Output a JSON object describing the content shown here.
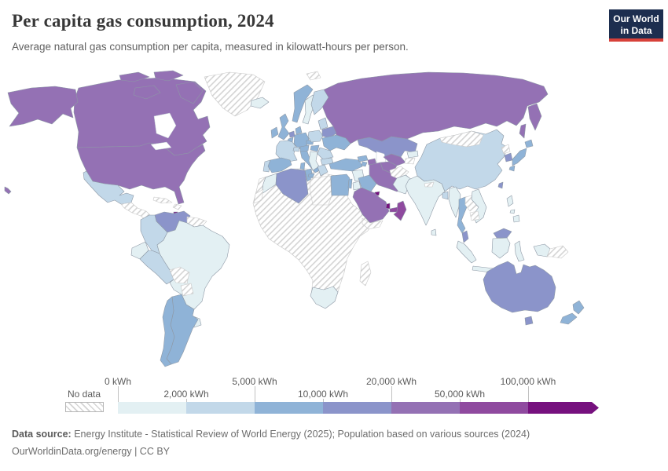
{
  "header": {
    "title": "Per capita gas consumption, 2024",
    "subtitle": "Average natural gas consumption per capita, measured in kilowatt-hours per person."
  },
  "logo": {
    "line1": "Our World",
    "line2": "in Data"
  },
  "colors": {
    "background": "#ffffff",
    "title_text": "#383838",
    "subtitle_text": "#616161",
    "legend_text": "#5b5b5b",
    "footer_text": "#6d6d6d",
    "logo_background": "#1d2e4f",
    "logo_accent_red": "#d7413a",
    "country_border": "#8e99a6",
    "no_data_hatch": "#d4d4d4"
  },
  "chart_data": {
    "type": "choropleth",
    "title": "Per capita gas consumption, 2024",
    "subtitle": "Average natural gas consumption per capita, measured in kilowatt-hours per person.",
    "unit": "kWh",
    "year": "2024",
    "legend": {
      "no_data_label": "No data",
      "tick_labels": [
        "0 kWh",
        "2,000 kWh",
        "5,000 kWh",
        "10,000 kWh",
        "20,000 kWh",
        "50,000 kWh",
        "100,000 kWh"
      ],
      "bins": [
        {
          "range": "0–2,000 kWh",
          "color": "#e3f0f3"
        },
        {
          "range": "2,000–5,000 kWh",
          "color": "#c2d8e9"
        },
        {
          "range": "5,000–10,000 kWh",
          "color": "#8fb3d7"
        },
        {
          "range": "10,000–20,000 kWh",
          "color": "#8b94ca"
        },
        {
          "range": "20,000–50,000 kWh",
          "color": "#9471b4"
        },
        {
          "range": "50,000–100,000 kWh",
          "color": "#8f4a9f"
        },
        {
          "range": "100,000+ kWh",
          "color": "#76117e"
        }
      ]
    },
    "regions": {
      "united-states": {
        "name": "United States",
        "bin": 4
      },
      "canada": {
        "name": "Canada",
        "bin": 4
      },
      "greenland": {
        "name": "Greenland",
        "bin": "no-data"
      },
      "mexico": {
        "name": "Mexico",
        "bin": 1
      },
      "central-america": {
        "name": "Central America",
        "bin": "no-data"
      },
      "cuba": {
        "name": "Cuba",
        "bin": "no-data"
      },
      "hispaniola": {
        "name": "Hispaniola",
        "bin": "no-data"
      },
      "trinidad-and-tobago": {
        "name": "Trinidad and Tobago",
        "bin": 6
      },
      "colombia": {
        "name": "Colombia",
        "bin": 1
      },
      "venezuela": {
        "name": "Venezuela",
        "bin": 3
      },
      "guyana-suriname": {
        "name": "Guyana and Suriname",
        "bin": "no-data"
      },
      "ecuador": {
        "name": "Ecuador",
        "bin": 0
      },
      "peru": {
        "name": "Peru",
        "bin": 1
      },
      "brazil": {
        "name": "Brazil",
        "bin": 0
      },
      "bolivia": {
        "name": "Bolivia",
        "bin": "no-data"
      },
      "paraguay": {
        "name": "Paraguay",
        "bin": "no-data"
      },
      "uruguay": {
        "name": "Uruguay",
        "bin": 0
      },
      "chile": {
        "name": "Chile",
        "bin": 2
      },
      "argentina": {
        "name": "Argentina",
        "bin": 2
      },
      "iceland": {
        "name": "Iceland",
        "bin": 0
      },
      "ireland": {
        "name": "Ireland",
        "bin": 2
      },
      "united-kingdom": {
        "name": "United Kingdom",
        "bin": 2
      },
      "norway": {
        "name": "Norway",
        "bin": 2
      },
      "sweden": {
        "name": "Sweden",
        "bin": 0
      },
      "finland": {
        "name": "Finland",
        "bin": 1
      },
      "denmark": {
        "name": "Denmark",
        "bin": 2
      },
      "netherlands": {
        "name": "Netherlands",
        "bin": 3
      },
      "belgium": {
        "name": "Belgium",
        "bin": 2
      },
      "germany": {
        "name": "Germany",
        "bin": 2
      },
      "france": {
        "name": "France",
        "bin": 1
      },
      "portugal": {
        "name": "Portugal",
        "bin": 1
      },
      "spain": {
        "name": "Spain",
        "bin": 2
      },
      "switzerland": {
        "name": "Switzerland",
        "bin": 1
      },
      "italy": {
        "name": "Italy",
        "bin": 2
      },
      "austria": {
        "name": "Austria",
        "bin": 2
      },
      "czechia": {
        "name": "Czechia",
        "bin": 2
      },
      "poland": {
        "name": "Poland",
        "bin": 1
      },
      "baltic-states": {
        "name": "Baltic states",
        "bin": 1
      },
      "belarus": {
        "name": "Belarus",
        "bin": 3
      },
      "ukraine": {
        "name": "Ukraine",
        "bin": 2
      },
      "hungary": {
        "name": "Hungary",
        "bin": 2
      },
      "romania": {
        "name": "Romania",
        "bin": 1
      },
      "balkans": {
        "name": "Western Balkans",
        "bin": 0
      },
      "bulgaria": {
        "name": "Bulgaria",
        "bin": 1
      },
      "greece": {
        "name": "Greece",
        "bin": 1
      },
      "turkey": {
        "name": "Turkey",
        "bin": 2
      },
      "svalbard": {
        "name": "Svalbard",
        "bin": "no-data"
      },
      "russia": {
        "name": "Russia",
        "bin": 4
      },
      "kazakhstan": {
        "name": "Kazakhstan",
        "bin": 3
      },
      "uzbekistan": {
        "name": "Uzbekistan",
        "bin": 4
      },
      "turkmenistan": {
        "name": "Turkmenistan",
        "bin": 4
      },
      "kyrgyzstan": {
        "name": "Kyrgyzstan",
        "bin": 0
      },
      "tajikistan": {
        "name": "Tajikistan",
        "bin": "no-data"
      },
      "georgia": {
        "name": "Georgia",
        "bin": 2
      },
      "armenia": {
        "name": "Armenia",
        "bin": 2
      },
      "azerbaijan": {
        "name": "Azerbaijan",
        "bin": 4
      },
      "syria": {
        "name": "Syria",
        "bin": 0
      },
      "israel": {
        "name": "Israel",
        "bin": 2
      },
      "jordan": {
        "name": "Jordan",
        "bin": 0
      },
      "iraq": {
        "name": "Iraq",
        "bin": 2
      },
      "iran": {
        "name": "Iran",
        "bin": 4
      },
      "kuwait": {
        "name": "Kuwait",
        "bin": 6
      },
      "saudi-arabia": {
        "name": "Saudi Arabia",
        "bin": 4
      },
      "qatar": {
        "name": "Qatar",
        "bin": 6
      },
      "united-arab-emirates": {
        "name": "United Arab Emirates",
        "bin": 5
      },
      "oman": {
        "name": "Oman",
        "bin": 5
      },
      "yemen": {
        "name": "Yemen",
        "bin": "no-data"
      },
      "egypt": {
        "name": "Egypt",
        "bin": 2
      },
      "libya": {
        "name": "Libya",
        "bin": "no-data"
      },
      "tunisia": {
        "name": "Tunisia",
        "bin": 2
      },
      "algeria": {
        "name": "Algeria",
        "bin": 3
      },
      "morocco": {
        "name": "Morocco",
        "bin": 0
      },
      "western-sahara": {
        "name": "Western Sahara",
        "bin": "no-data"
      },
      "sub-saharan-africa": {
        "name": "Sub-Saharan Africa (most countries)",
        "bin": "no-data"
      },
      "madagascar": {
        "name": "Madagascar",
        "bin": "no-data"
      },
      "south-africa": {
        "name": "South Africa",
        "bin": 0
      },
      "afghanistan": {
        "name": "Afghanistan",
        "bin": "no-data"
      },
      "pakistan": {
        "name": "Pakistan",
        "bin": 0
      },
      "india": {
        "name": "India",
        "bin": 0
      },
      "nepal": {
        "name": "Nepal",
        "bin": "no-data"
      },
      "sri-lanka": {
        "name": "Sri Lanka",
        "bin": 0
      },
      "bangladesh": {
        "name": "Bangladesh",
        "bin": 1
      },
      "china": {
        "name": "China",
        "bin": 1
      },
      "mongolia": {
        "name": "Mongolia",
        "bin": "no-data"
      },
      "north-korea": {
        "name": "North Korea",
        "bin": "no-data"
      },
      "south-korea": {
        "name": "South Korea",
        "bin": 3
      },
      "japan": {
        "name": "Japan",
        "bin": 2
      },
      "taiwan": {
        "name": "Taiwan",
        "bin": 3
      },
      "myanmar": {
        "name": "Myanmar",
        "bin": 0
      },
      "thailand": {
        "name": "Thailand",
        "bin": 2
      },
      "laos": {
        "name": "Laos",
        "bin": "no-data"
      },
      "vietnam": {
        "name": "Vietnam",
        "bin": 0
      },
      "cambodia": {
        "name": "Cambodia",
        "bin": "no-data"
      },
      "malaysia": {
        "name": "Malaysia",
        "bin": 3
      },
      "indonesia": {
        "name": "Indonesia",
        "bin": 0
      },
      "philippines": {
        "name": "Philippines",
        "bin": 0
      },
      "papua-new-guinea": {
        "name": "Papua New Guinea",
        "bin": "no-data"
      },
      "australia": {
        "name": "Australia",
        "bin": 3
      },
      "new-zealand": {
        "name": "New Zealand",
        "bin": 2
      }
    }
  },
  "footer": {
    "source_label": "Data source:",
    "source_text": "Energy Institute - Statistical Review of World Energy (2025); Population based on various sources (2024)",
    "license": "OurWorldinData.org/energy | CC BY"
  }
}
